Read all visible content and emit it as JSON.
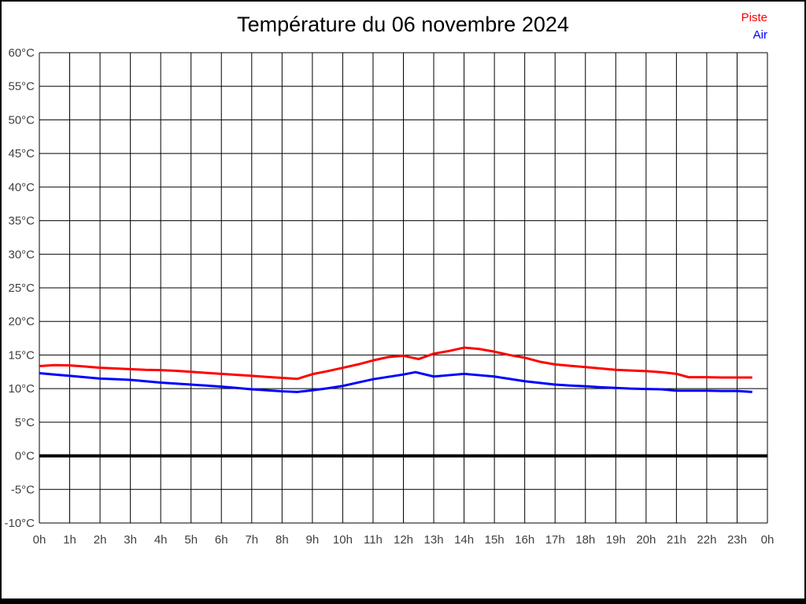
{
  "title": "Température du 06 novembre 2024",
  "legend": {
    "piste_label": "Piste",
    "air_label": "Air"
  },
  "colors": {
    "piste": "#ff0000",
    "air": "#0000ff",
    "grid": "#000000",
    "zero_line": "#000000",
    "tick_text": "#404040",
    "background": "#ffffff"
  },
  "chart_data": {
    "type": "line",
    "title": "Température du 06 novembre 2024",
    "legend_position": "top-right",
    "grid": true,
    "x_axis": {
      "unit": "h",
      "range": [
        0,
        24
      ],
      "tick_values": [
        0,
        1,
        2,
        3,
        4,
        5,
        6,
        7,
        8,
        9,
        10,
        11,
        12,
        13,
        14,
        15,
        16,
        17,
        18,
        19,
        20,
        21,
        22,
        23,
        24
      ],
      "tick_labels": [
        "0h",
        "1h",
        "2h",
        "3h",
        "4h",
        "5h",
        "6h",
        "7h",
        "8h",
        "9h",
        "10h",
        "11h",
        "12h",
        "13h",
        "14h",
        "15h",
        "16h",
        "17h",
        "18h",
        "19h",
        "20h",
        "21h",
        "22h",
        "23h",
        "0h"
      ]
    },
    "y_axis": {
      "unit": "°C",
      "range": [
        -10,
        60
      ],
      "tick_values": [
        60,
        55,
        50,
        45,
        40,
        35,
        30,
        25,
        20,
        15,
        10,
        5,
        0,
        -5,
        -10
      ],
      "tick_labels": [
        "60°C",
        "55°C",
        "50°C",
        "45°C",
        "40°C",
        "35°C",
        "30°C",
        "25°C",
        "20°C",
        "15°C",
        "10°C",
        "5°C",
        "0°C",
        "-5°C",
        "-10°C"
      ],
      "zero_line_bold": true
    },
    "series": [
      {
        "name": "Piste",
        "color": "#ff0000",
        "points": [
          [
            0,
            13.35
          ],
          [
            0.5,
            13.5
          ],
          [
            1,
            13.45
          ],
          [
            1.5,
            13.3
          ],
          [
            2,
            13.1
          ],
          [
            2.5,
            13.0
          ],
          [
            3,
            12.9
          ],
          [
            3.5,
            12.8
          ],
          [
            4,
            12.75
          ],
          [
            4.5,
            12.65
          ],
          [
            5,
            12.5
          ],
          [
            5.5,
            12.35
          ],
          [
            6,
            12.2
          ],
          [
            6.5,
            12.05
          ],
          [
            7,
            11.9
          ],
          [
            7.5,
            11.75
          ],
          [
            8,
            11.6
          ],
          [
            8.5,
            11.45
          ],
          [
            9,
            12.15
          ],
          [
            9.5,
            12.6
          ],
          [
            10,
            13.1
          ],
          [
            10.5,
            13.6
          ],
          [
            11,
            14.2
          ],
          [
            11.5,
            14.7
          ],
          [
            12,
            14.9
          ],
          [
            12.5,
            14.4
          ],
          [
            13,
            15.2
          ],
          [
            13.5,
            15.6
          ],
          [
            14,
            16.1
          ],
          [
            14.5,
            15.9
          ],
          [
            15,
            15.5
          ],
          [
            15.5,
            15.0
          ],
          [
            16,
            14.6
          ],
          [
            16.5,
            14.0
          ],
          [
            17,
            13.6
          ],
          [
            17.5,
            13.4
          ],
          [
            18,
            13.2
          ],
          [
            18.5,
            13.0
          ],
          [
            19,
            12.8
          ],
          [
            19.5,
            12.7
          ],
          [
            20,
            12.6
          ],
          [
            20.5,
            12.45
          ],
          [
            21,
            12.2
          ],
          [
            21.4,
            11.7
          ],
          [
            22,
            11.7
          ],
          [
            22.5,
            11.65
          ],
          [
            23,
            11.65
          ],
          [
            23.5,
            11.65
          ]
        ]
      },
      {
        "name": "Air",
        "color": "#0000ff",
        "points": [
          [
            0,
            12.3
          ],
          [
            0.5,
            12.1
          ],
          [
            1,
            11.9
          ],
          [
            1.5,
            11.7
          ],
          [
            2,
            11.5
          ],
          [
            2.5,
            11.4
          ],
          [
            3,
            11.3
          ],
          [
            3.5,
            11.1
          ],
          [
            4,
            10.9
          ],
          [
            4.5,
            10.75
          ],
          [
            5,
            10.6
          ],
          [
            5.5,
            10.45
          ],
          [
            6,
            10.3
          ],
          [
            6.5,
            10.1
          ],
          [
            7,
            9.9
          ],
          [
            7.5,
            9.75
          ],
          [
            8,
            9.6
          ],
          [
            8.5,
            9.5
          ],
          [
            9,
            9.75
          ],
          [
            9.5,
            10.05
          ],
          [
            10,
            10.4
          ],
          [
            10.5,
            10.9
          ],
          [
            11,
            11.4
          ],
          [
            11.5,
            11.75
          ],
          [
            12,
            12.1
          ],
          [
            12.4,
            12.45
          ],
          [
            13,
            11.8
          ],
          [
            13.5,
            12.0
          ],
          [
            14,
            12.2
          ],
          [
            14.5,
            12.0
          ],
          [
            15,
            11.8
          ],
          [
            15.5,
            11.45
          ],
          [
            16,
            11.1
          ],
          [
            16.5,
            10.85
          ],
          [
            17,
            10.6
          ],
          [
            17.5,
            10.45
          ],
          [
            18,
            10.35
          ],
          [
            18.5,
            10.2
          ],
          [
            19,
            10.1
          ],
          [
            19.5,
            10.0
          ],
          [
            20,
            9.95
          ],
          [
            20.5,
            9.9
          ],
          [
            21,
            9.7
          ],
          [
            21.5,
            9.7
          ],
          [
            22,
            9.7
          ],
          [
            22.5,
            9.65
          ],
          [
            23,
            9.65
          ],
          [
            23.5,
            9.5
          ]
        ]
      }
    ]
  }
}
